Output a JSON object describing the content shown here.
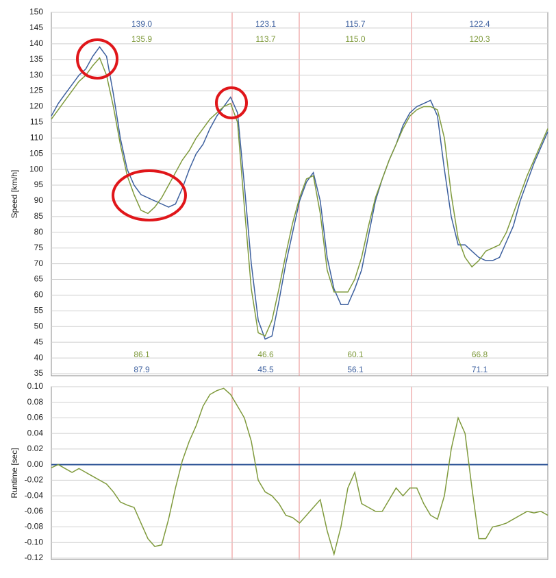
{
  "chart_data": [
    {
      "type": "line",
      "y_label": "Speed [km/h]",
      "ylim": [
        35,
        150
      ],
      "yticks": [
        150,
        145,
        140,
        135,
        130,
        125,
        120,
        115,
        110,
        105,
        100,
        95,
        90,
        85,
        80,
        75,
        70,
        65,
        60,
        55,
        50,
        45,
        40,
        35
      ],
      "grid": true,
      "series": [
        {
          "color": "#3c5f9e",
          "values": [
            117,
            121,
            124,
            127,
            130,
            132,
            136,
            139,
            136,
            124,
            110,
            100,
            95,
            92,
            91,
            90,
            89,
            88,
            89,
            94,
            100,
            105,
            108,
            113,
            117,
            120,
            123,
            118,
            95,
            70,
            52,
            46,
            47,
            58,
            70,
            80,
            90,
            96,
            99,
            90,
            72,
            62,
            57,
            57,
            62,
            68,
            79,
            90,
            97,
            103,
            108,
            114,
            118,
            120,
            121,
            122,
            117,
            100,
            85,
            76,
            76,
            74,
            72,
            71,
            71,
            72,
            77,
            82,
            90,
            96,
            102,
            107,
            112
          ],
          "section_max": [
            "139.0",
            "123.1",
            "115.7",
            "122.4"
          ],
          "section_min": [
            "87.9",
            "45.5",
            "56.1",
            "71.1"
          ]
        },
        {
          "color": "#7f9a3c",
          "values": [
            116,
            119,
            122,
            125,
            128,
            130,
            133,
            135.5,
            130,
            120,
            108,
            98,
            92,
            87,
            86,
            88,
            91,
            95,
            99,
            103,
            106,
            110,
            113,
            116,
            118,
            120,
            121,
            115,
            88,
            62,
            48,
            47,
            52,
            62,
            73,
            83,
            91,
            97,
            98,
            86,
            68,
            61,
            61,
            61,
            65,
            72,
            82,
            91,
            97,
            103,
            108,
            113,
            117,
            119,
            120,
            120,
            119,
            110,
            92,
            78,
            72,
            69,
            71,
            74,
            75,
            76,
            80,
            86,
            92,
            98,
            103,
            108,
            113
          ],
          "section_max": [
            "135.9",
            "113.7",
            "115.0",
            "120.3"
          ],
          "section_min": [
            "86.1",
            "46.6",
            "60.1",
            "66.8"
          ]
        }
      ]
    },
    {
      "type": "line",
      "y_label": "Runtime [sec]",
      "ylim": [
        -0.12,
        0.1
      ],
      "yticks": [
        {
          "value": 0.1,
          "label": "0.10"
        },
        0.08,
        0.06,
        0.04,
        0.02,
        {
          "value": 0,
          "label": "0.00"
        },
        -0.02,
        -0.04,
        -0.06,
        -0.08,
        {
          "value": -0.1,
          "label": "-0.10"
        },
        -0.12
      ],
      "grid": true,
      "zero_line_color": "#2f5597",
      "series": [
        {
          "color": "#7f9a3c",
          "values": [
            -0.004,
            0,
            -0.005,
            -0.01,
            -0.005,
            -0.01,
            -0.015,
            -0.02,
            -0.025,
            -0.035,
            -0.048,
            -0.052,
            -0.055,
            -0.075,
            -0.095,
            -0.105,
            -0.103,
            -0.07,
            -0.03,
            0.005,
            0.03,
            0.05,
            0.075,
            0.09,
            0.095,
            0.098,
            0.09,
            0.075,
            0.06,
            0.03,
            -0.02,
            -0.035,
            -0.04,
            -0.05,
            -0.065,
            -0.068,
            -0.075,
            -0.065,
            -0.055,
            -0.045,
            -0.085,
            -0.115,
            -0.08,
            -0.03,
            -0.01,
            -0.05,
            -0.055,
            -0.06,
            -0.06,
            -0.045,
            -0.03,
            -0.04,
            -0.03,
            -0.03,
            -0.05,
            -0.065,
            -0.07,
            -0.04,
            0.02,
            0.06,
            0.04,
            -0.03,
            -0.095,
            -0.095,
            -0.08,
            -0.078,
            -0.075,
            -0.07,
            -0.065,
            -0.06,
            -0.062,
            -0.06,
            -0.065
          ]
        }
      ]
    }
  ]
}
